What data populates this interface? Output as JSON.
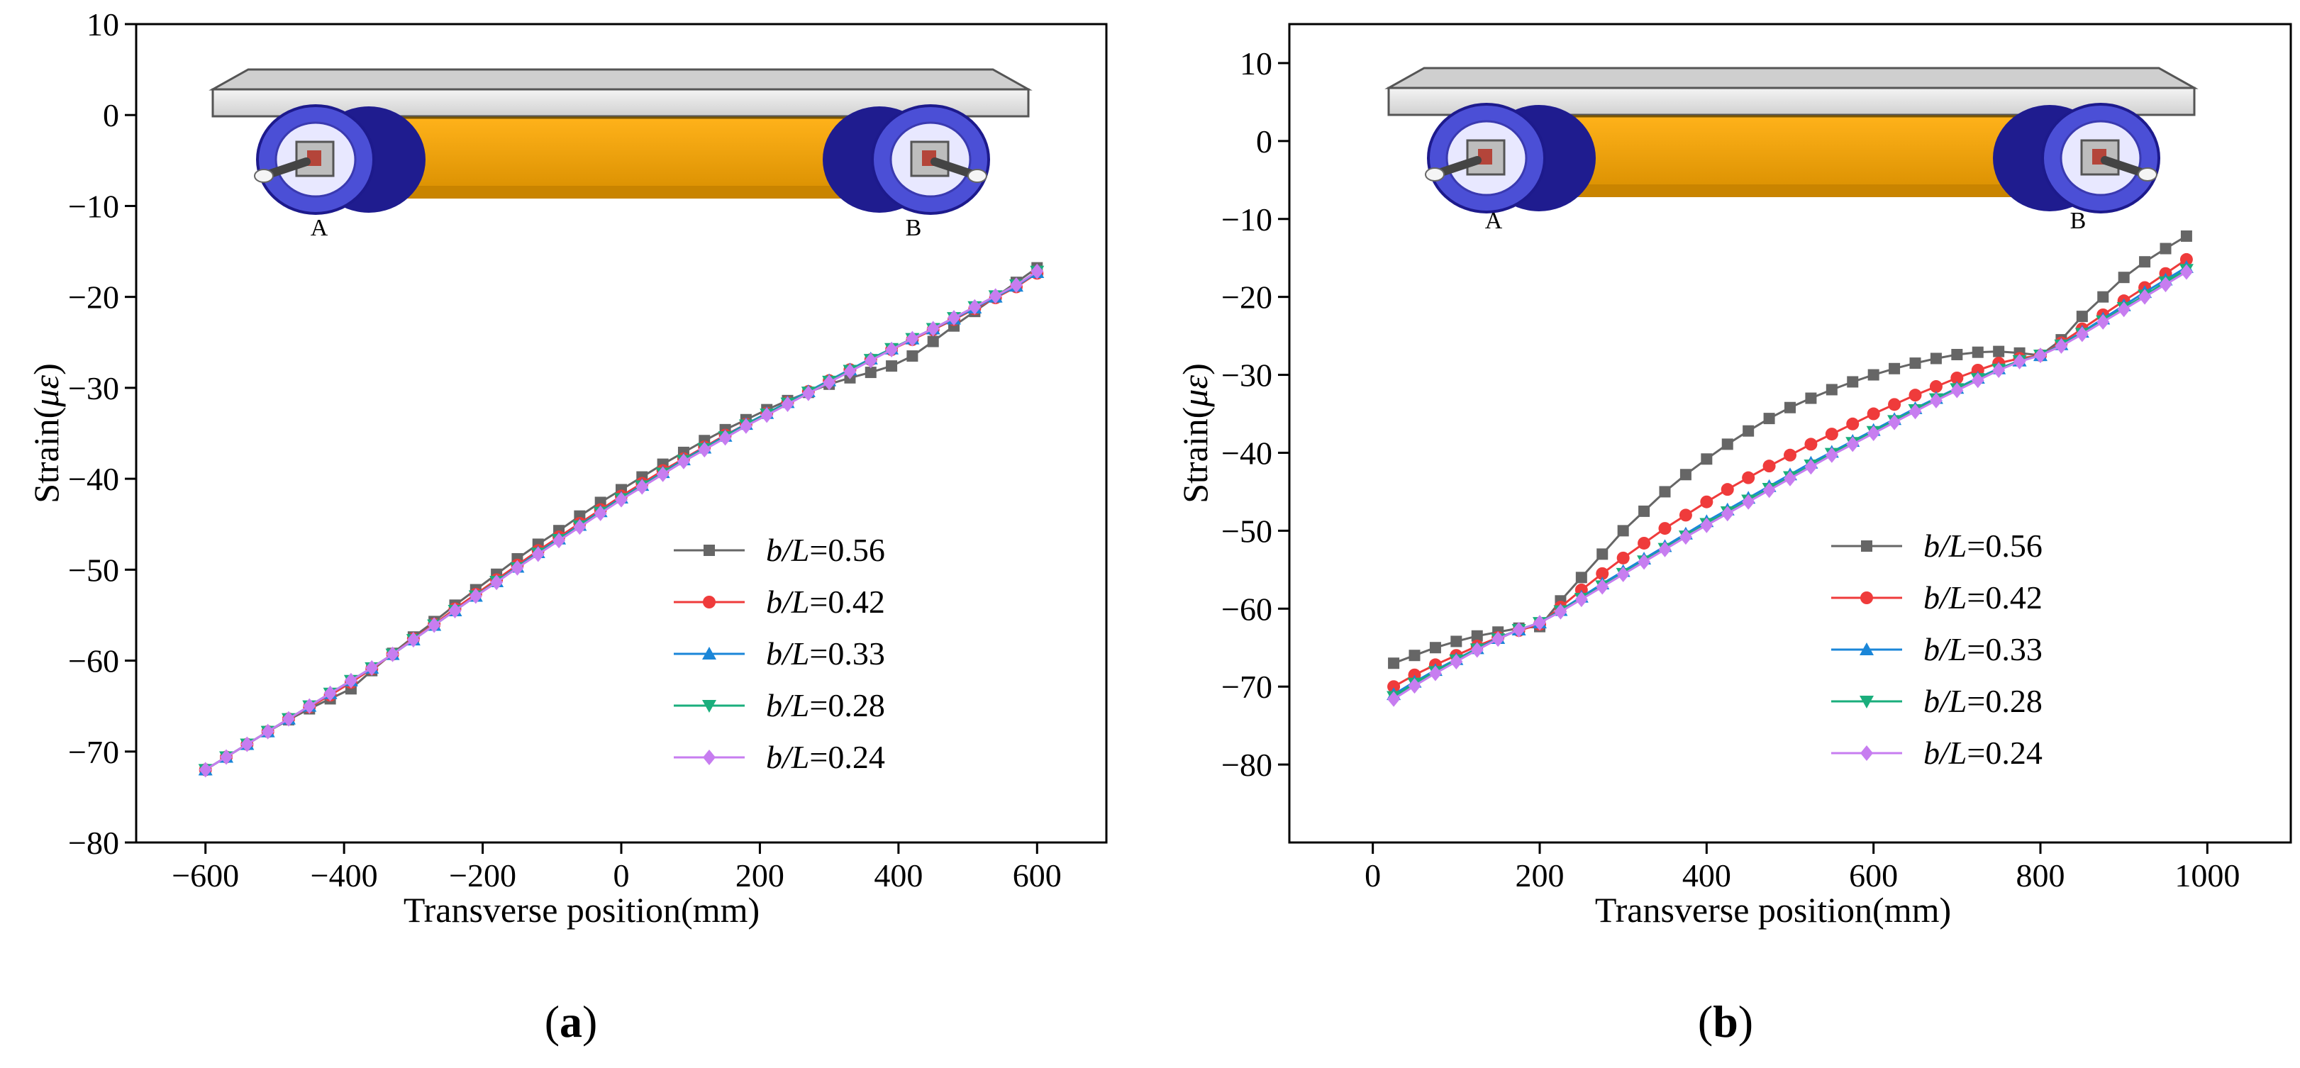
{
  "panels": [
    {
      "label": "(a)",
      "label_letter": "a"
    },
    {
      "label": "(b)",
      "label_letter": "b"
    }
  ],
  "diagram": {
    "left_support": "A",
    "right_support": "B"
  },
  "colors": {
    "s056": "#666666",
    "s042": "#ef3b3b",
    "s033": "#1a86d8",
    "s028": "#1aae7c",
    "s024": "#c77df0",
    "girder": "#f5a800",
    "deck": "#e2e2e2",
    "wheel": "#4b4fd6",
    "wheel_dark": "#1d1a8c"
  },
  "chart_data": [
    {
      "type": "line",
      "title": "",
      "xlabel": "Transverse position(mm)",
      "ylabel": "Strain(με)",
      "ylabel_prefix": "Strain(",
      "ylabel_symbol": "με",
      "ylabel_suffix": ")",
      "xlim": [
        -700,
        700
      ],
      "ylim": [
        -80,
        10
      ],
      "xticks": [
        -600,
        -400,
        -200,
        0,
        200,
        400,
        600
      ],
      "yticks": [
        10,
        0,
        -10,
        -20,
        -30,
        -40,
        -50,
        -60,
        -70,
        -80
      ],
      "legend_position": "lower-right",
      "x": [
        -600,
        -570,
        -540,
        -510,
        -480,
        -450,
        -420,
        -390,
        -360,
        -330,
        -300,
        -270,
        -240,
        -210,
        -180,
        -150,
        -120,
        -90,
        -60,
        -30,
        0,
        30,
        60,
        90,
        120,
        150,
        180,
        210,
        240,
        270,
        300,
        330,
        360,
        390,
        420,
        450,
        480,
        510,
        540,
        570,
        600
      ],
      "series": [
        {
          "name": "b/L=0.56",
          "legend_var": "b/L",
          "legend_val": "=0.56",
          "marker": "square",
          "color_key": "s056",
          "values": [
            -72,
            -70.6,
            -69.2,
            -67.8,
            -66.5,
            -65.3,
            -64.2,
            -63.1,
            -61.1,
            -59.2,
            -57.4,
            -55.7,
            -53.9,
            -52.2,
            -50.5,
            -48.8,
            -47.2,
            -45.7,
            -44.1,
            -42.6,
            -41.2,
            -39.8,
            -38.4,
            -37.1,
            -35.8,
            -34.6,
            -33.5,
            -32.4,
            -31.4,
            -30.5,
            -29.6,
            -28.9,
            -28.3,
            -27.6,
            -26.5,
            -24.9,
            -23.2,
            -21.6,
            -20,
            -18.4,
            -16.8
          ]
        },
        {
          "name": "b/L=0.42",
          "legend_var": "b/L",
          "legend_val": "=0.42",
          "marker": "circle",
          "color_key": "s042",
          "values": [
            -72,
            -70.6,
            -69.2,
            -67.8,
            -66.4,
            -65.1,
            -63.8,
            -62.4,
            -60.9,
            -59.3,
            -57.6,
            -56,
            -54.3,
            -52.7,
            -51.1,
            -49.5,
            -47.9,
            -46.4,
            -44.9,
            -43.4,
            -41.9,
            -40.5,
            -39.1,
            -37.8,
            -36.5,
            -35.2,
            -34,
            -32.8,
            -31.6,
            -30.4,
            -29.2,
            -28,
            -26.9,
            -25.8,
            -24.7,
            -23.6,
            -22.5,
            -21.3,
            -20.1,
            -18.9,
            -17.4
          ]
        },
        {
          "name": "b/L=0.33",
          "legend_var": "b/L",
          "legend_val": "=0.33",
          "marker": "triangle-up",
          "color_key": "s033",
          "values": [
            -72,
            -70.6,
            -69.2,
            -67.8,
            -66.4,
            -65,
            -63.6,
            -62.2,
            -60.8,
            -59.3,
            -57.7,
            -56.1,
            -54.5,
            -52.9,
            -51.3,
            -49.7,
            -48.1,
            -46.6,
            -45.1,
            -43.6,
            -42.1,
            -40.7,
            -39.3,
            -37.9,
            -36.6,
            -35.3,
            -34,
            -32.8,
            -31.6,
            -30.4,
            -29.2,
            -28,
            -26.8,
            -25.7,
            -24.6,
            -23.5,
            -22.4,
            -21.2,
            -20,
            -18.8,
            -17.3
          ]
        },
        {
          "name": "b/L=0.28",
          "legend_var": "b/L",
          "legend_val": "=0.28",
          "marker": "triangle-down",
          "color_key": "s028",
          "values": [
            -72,
            -70.6,
            -69.2,
            -67.8,
            -66.4,
            -65,
            -63.6,
            -62.2,
            -60.8,
            -59.3,
            -57.7,
            -56.1,
            -54.5,
            -52.9,
            -51.3,
            -49.8,
            -48.2,
            -46.7,
            -45.2,
            -43.7,
            -42.2,
            -40.8,
            -39.4,
            -38,
            -36.7,
            -35.4,
            -34.1,
            -32.9,
            -31.7,
            -30.5,
            -29.3,
            -28.1,
            -26.9,
            -25.7,
            -24.6,
            -23.5,
            -22.3,
            -21.1,
            -19.9,
            -18.7,
            -17.2
          ]
        },
        {
          "name": "b/L=0.24",
          "legend_var": "b/L",
          "legend_val": "=0.24",
          "marker": "diamond",
          "color_key": "s024",
          "values": [
            -72,
            -70.6,
            -69.2,
            -67.8,
            -66.4,
            -65,
            -63.6,
            -62.2,
            -60.8,
            -59.3,
            -57.7,
            -56.1,
            -54.5,
            -52.9,
            -51.4,
            -49.8,
            -48.3,
            -46.8,
            -45.3,
            -43.8,
            -42.3,
            -40.9,
            -39.5,
            -38.1,
            -36.8,
            -35.5,
            -34.2,
            -33,
            -31.8,
            -30.6,
            -29.4,
            -28.2,
            -27,
            -25.8,
            -24.6,
            -23.5,
            -22.3,
            -21.1,
            -19.9,
            -18.7,
            -17.2
          ]
        }
      ]
    },
    {
      "type": "line",
      "title": "",
      "xlabel": "Transverse position(mm)",
      "ylabel": "Strain(με)",
      "ylabel_prefix": "Strain(",
      "ylabel_symbol": "με",
      "ylabel_suffix": ")",
      "xlim": [
        -100,
        1100
      ],
      "ylim": [
        -90,
        15
      ],
      "xticks": [
        0,
        200,
        400,
        600,
        800,
        1000
      ],
      "yticks": [
        10,
        0,
        -10,
        -20,
        -30,
        -40,
        -50,
        -60,
        -70,
        -80
      ],
      "legend_position": "lower-right",
      "x": [
        25,
        50,
        75,
        100,
        125,
        150,
        175,
        200,
        225,
        250,
        275,
        300,
        325,
        350,
        375,
        400,
        425,
        450,
        475,
        500,
        525,
        550,
        575,
        600,
        625,
        650,
        675,
        700,
        725,
        750,
        775,
        800,
        825,
        850,
        875,
        900,
        925,
        950,
        975
      ],
      "series": [
        {
          "name": "b/L=0.56",
          "legend_var": "b/L",
          "legend_val": "=0.56",
          "marker": "square",
          "color_key": "s056",
          "values": [
            -67,
            -66,
            -65,
            -64.2,
            -63.5,
            -63,
            -62.5,
            -62.3,
            -59,
            -56,
            -53,
            -50,
            -47.5,
            -45,
            -42.8,
            -40.8,
            -38.9,
            -37.2,
            -35.6,
            -34.2,
            -33,
            -31.9,
            -30.9,
            -30,
            -29.2,
            -28.5,
            -27.9,
            -27.4,
            -27.1,
            -27,
            -27.2,
            -27.5,
            -25.5,
            -22.5,
            -20,
            -17.5,
            -15.5,
            -13.8,
            -12.2
          ]
        },
        {
          "name": "b/L=0.42",
          "legend_var": "b/L",
          "legend_val": "=0.42",
          "marker": "circle",
          "color_key": "s042",
          "values": [
            -70,
            -68.5,
            -67.2,
            -66,
            -64.8,
            -63.7,
            -62.8,
            -62,
            -59.8,
            -57.6,
            -55.5,
            -53.5,
            -51.6,
            -49.7,
            -48,
            -46.3,
            -44.7,
            -43.2,
            -41.7,
            -40.3,
            -38.9,
            -37.6,
            -36.3,
            -35,
            -33.8,
            -32.6,
            -31.5,
            -30.4,
            -29.4,
            -28.5,
            -27.9,
            -27.5,
            -25.9,
            -24.1,
            -22.3,
            -20.5,
            -18.8,
            -17,
            -15.2
          ]
        },
        {
          "name": "b/L=0.33",
          "legend_var": "b/L",
          "legend_val": "=0.33",
          "marker": "triangle-up",
          "color_key": "s033",
          "values": [
            -71,
            -69.4,
            -67.9,
            -66.5,
            -65.1,
            -63.8,
            -62.7,
            -61.8,
            -60.2,
            -58.5,
            -56.8,
            -55.2,
            -53.6,
            -52,
            -50.4,
            -48.8,
            -47.3,
            -45.8,
            -44.3,
            -42.8,
            -41.3,
            -39.9,
            -38.5,
            -37.1,
            -35.7,
            -34.3,
            -33,
            -31.7,
            -30.4,
            -29.2,
            -28.2,
            -27.5,
            -26.1,
            -24.5,
            -22.8,
            -21.1,
            -19.4,
            -17.8,
            -16.2
          ]
        },
        {
          "name": "b/L=0.28",
          "legend_var": "b/L",
          "legend_val": "=0.28",
          "marker": "triangle-down",
          "color_key": "s028",
          "values": [
            -71.3,
            -69.6,
            -68.1,
            -66.6,
            -65.2,
            -63.9,
            -62.7,
            -61.8,
            -60.3,
            -58.7,
            -57.1,
            -55.5,
            -53.9,
            -52.3,
            -50.7,
            -49.1,
            -47.6,
            -46.1,
            -44.6,
            -43.1,
            -41.6,
            -40.1,
            -38.7,
            -37.3,
            -35.9,
            -34.5,
            -33.1,
            -31.8,
            -30.5,
            -29.3,
            -28.2,
            -27.5,
            -26.2,
            -24.7,
            -23.1,
            -21.4,
            -19.8,
            -18.1,
            -16.5
          ]
        },
        {
          "name": "b/L=0.24",
          "legend_var": "b/L",
          "legend_val": "=0.24",
          "marker": "diamond",
          "color_key": "s024",
          "values": [
            -71.6,
            -69.9,
            -68.3,
            -66.8,
            -65.3,
            -63.9,
            -62.7,
            -61.8,
            -60.4,
            -58.8,
            -57.2,
            -55.6,
            -54,
            -52.4,
            -50.8,
            -49.3,
            -47.8,
            -46.3,
            -44.8,
            -43.3,
            -41.8,
            -40.3,
            -38.9,
            -37.5,
            -36.1,
            -34.7,
            -33.3,
            -32,
            -30.7,
            -29.4,
            -28.3,
            -27.5,
            -26.3,
            -24.8,
            -23.2,
            -21.6,
            -20,
            -18.4,
            -16.8
          ]
        }
      ]
    }
  ]
}
